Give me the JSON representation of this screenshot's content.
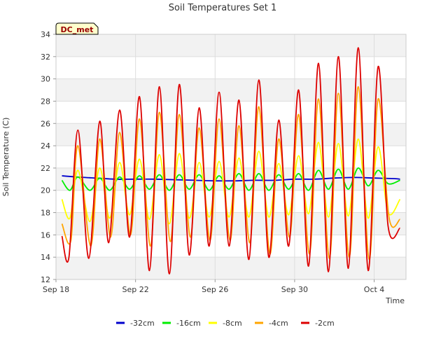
{
  "chart_data": {
    "type": "line",
    "title": "Soil Temperatures Set 1",
    "xlabel": "Time",
    "ylabel": "Soil Temperature (C)",
    "station_label": "DC_met",
    "xlim": [
      0,
      17.6
    ],
    "ylim": [
      12,
      34
    ],
    "yticks": [
      12,
      14,
      16,
      18,
      20,
      22,
      24,
      26,
      28,
      30,
      32,
      34
    ],
    "xticks": [
      {
        "label": "Sep 18",
        "x": 0
      },
      {
        "label": "Sep 22",
        "x": 4
      },
      {
        "label": "Sep 26",
        "x": 8
      },
      {
        "label": "Sep 30",
        "x": 12
      },
      {
        "label": "Oct 4",
        "x": 16
      }
    ],
    "grid": true,
    "legend_position": "bottom",
    "series": [
      {
        "name": "-32cm",
        "color": "#0000cc",
        "x": [
          0.3,
          1,
          2,
          3,
          4,
          5,
          6,
          7,
          8,
          9,
          10,
          11,
          12,
          13,
          14,
          15,
          16,
          17,
          17.3
        ],
        "y": [
          21.3,
          21.2,
          21.1,
          21.0,
          21.0,
          21.0,
          20.95,
          20.9,
          20.85,
          20.85,
          20.9,
          20.9,
          21.0,
          21.0,
          21.1,
          21.15,
          21.1,
          21.05,
          21.0
        ]
      },
      {
        "name": "-16cm",
        "color": "#00ee00",
        "x": [
          0.3,
          0.7,
          1.1,
          1.7,
          2.2,
          2.7,
          3.2,
          3.7,
          4.2,
          4.7,
          5.2,
          5.7,
          6.2,
          6.7,
          7.2,
          7.7,
          8.2,
          8.7,
          9.2,
          9.7,
          10.2,
          10.7,
          11.2,
          11.7,
          12.2,
          12.7,
          13.2,
          13.7,
          14.2,
          14.7,
          15.2,
          15.7,
          16.2,
          16.7,
          17.3
        ],
        "y": [
          20.9,
          20.0,
          21.2,
          20.0,
          21.1,
          20.0,
          21.2,
          20.1,
          21.3,
          20.1,
          21.4,
          20.0,
          21.4,
          20.1,
          21.4,
          20.0,
          21.3,
          20.1,
          21.5,
          20.0,
          21.5,
          20.0,
          21.4,
          20.1,
          21.5,
          20.0,
          21.8,
          20.1,
          21.9,
          20.1,
          22.0,
          20.4,
          21.8,
          20.6,
          20.9
        ]
      },
      {
        "name": "-8cm",
        "color": "#ffff00",
        "x": [
          0.3,
          0.7,
          1.1,
          1.7,
          2.2,
          2.7,
          3.2,
          3.7,
          4.2,
          4.7,
          5.2,
          5.7,
          6.2,
          6.7,
          7.2,
          7.7,
          8.2,
          8.7,
          9.2,
          9.7,
          10.2,
          10.7,
          11.2,
          11.7,
          12.2,
          12.7,
          13.2,
          13.7,
          14.2,
          14.7,
          15.2,
          15.7,
          16.2,
          16.7,
          17.3
        ],
        "y": [
          19.2,
          17.5,
          21.8,
          17.2,
          22.0,
          17.5,
          22.5,
          17.8,
          22.8,
          17.4,
          23.2,
          17.0,
          23.3,
          17.5,
          22.5,
          17.6,
          22.6,
          17.6,
          22.9,
          17.6,
          23.5,
          17.6,
          22.4,
          17.8,
          23.1,
          17.9,
          24.3,
          17.6,
          24.2,
          17.7,
          24.6,
          17.5,
          23.9,
          18.0,
          19.2
        ]
      },
      {
        "name": "-4cm",
        "color": "#ffa500",
        "x": [
          0.3,
          0.75,
          1.1,
          1.75,
          2.2,
          2.75,
          3.2,
          3.75,
          4.2,
          4.75,
          5.2,
          5.75,
          6.2,
          6.75,
          7.2,
          7.75,
          8.2,
          8.75,
          9.2,
          9.75,
          10.2,
          10.75,
          11.2,
          11.75,
          12.2,
          12.75,
          13.2,
          13.75,
          14.2,
          14.75,
          15.2,
          15.75,
          16.2,
          16.75,
          17.3
        ],
        "y": [
          17.0,
          15.5,
          24.0,
          15.0,
          24.6,
          15.8,
          25.2,
          16.0,
          26.4,
          15.0,
          27.0,
          15.4,
          26.8,
          15.8,
          25.6,
          15.5,
          26.4,
          15.5,
          25.8,
          15.3,
          27.5,
          14.3,
          24.6,
          15.8,
          26.8,
          14.3,
          28.2,
          13.9,
          28.7,
          14.0,
          29.3,
          13.8,
          28.2,
          17.5,
          17.4
        ]
      },
      {
        "name": "-2cm",
        "color": "#dd0000",
        "x": [
          0.3,
          0.65,
          1.1,
          1.65,
          2.2,
          2.65,
          3.2,
          3.7,
          4.2,
          4.7,
          5.2,
          5.7,
          6.2,
          6.7,
          7.2,
          7.7,
          8.2,
          8.7,
          9.2,
          9.7,
          10.2,
          10.7,
          11.2,
          11.7,
          12.2,
          12.7,
          13.2,
          13.7,
          14.2,
          14.7,
          15.2,
          15.7,
          16.2,
          16.7,
          17.3
        ],
        "y": [
          15.9,
          14.0,
          25.4,
          13.9,
          26.2,
          15.3,
          27.2,
          15.8,
          28.4,
          12.8,
          29.3,
          12.5,
          29.5,
          14.2,
          27.4,
          15.0,
          28.8,
          15.0,
          28.1,
          13.8,
          29.9,
          14.0,
          26.3,
          15.0,
          29.0,
          13.2,
          31.4,
          12.7,
          32.0,
          13.0,
          32.8,
          12.8,
          31.1,
          16.8,
          16.6
        ]
      }
    ]
  }
}
